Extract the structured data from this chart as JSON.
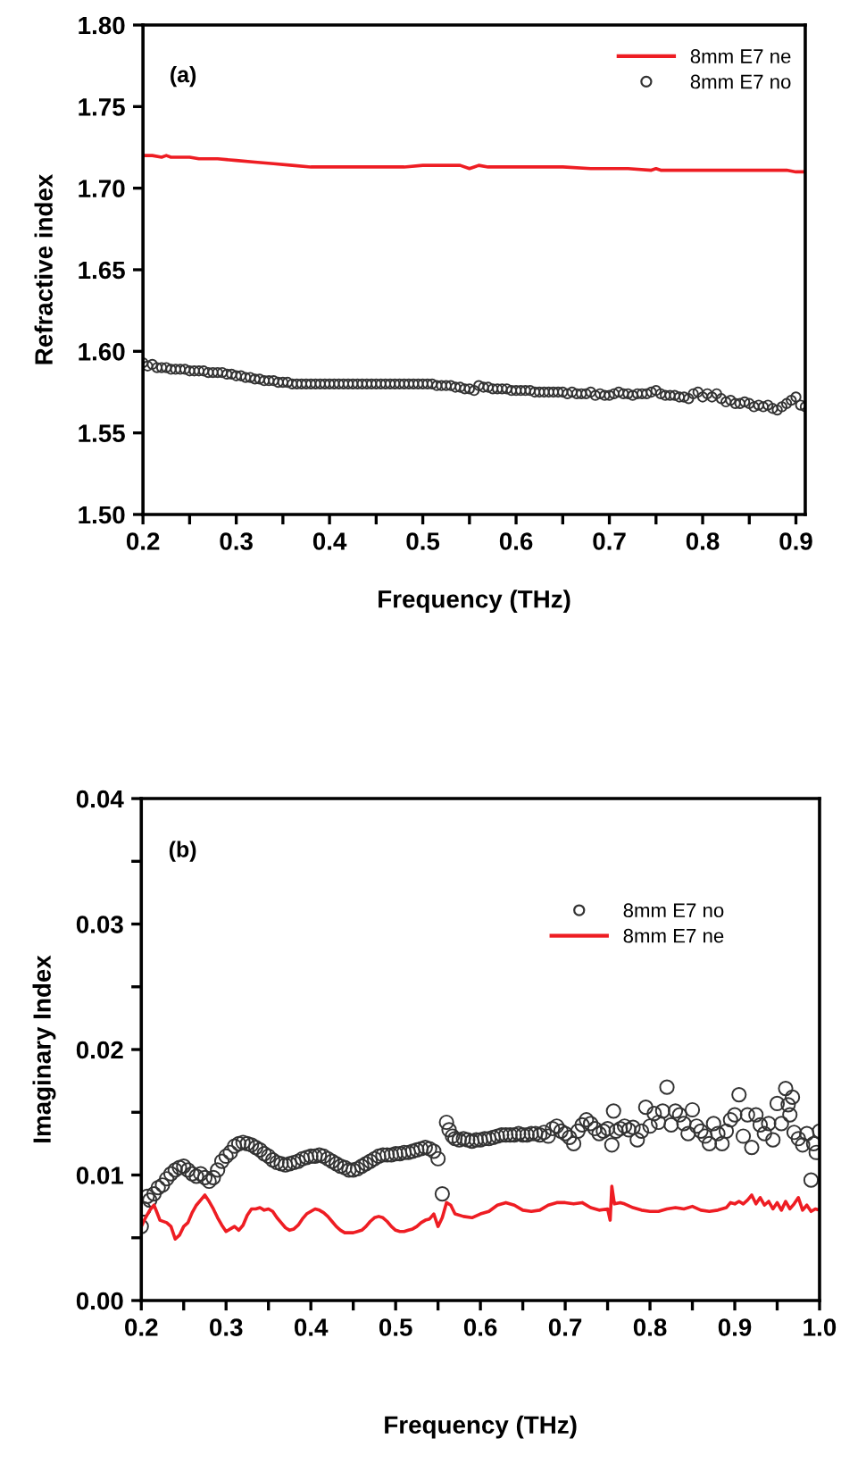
{
  "chart_data": [
    {
      "type": "line",
      "xlabel": "Frequency (THz)",
      "ylabel": "Refractive index",
      "annotations": [
        "(a)"
      ],
      "xlim": [
        0.2,
        0.91
      ],
      "ylim": [
        1.5,
        1.8
      ],
      "xticks": [
        0.2,
        {
          "value": 0.25,
          "label": null
        },
        0.3,
        {
          "value": 0.35,
          "label": null
        },
        0.4,
        {
          "value": 0.45,
          "label": null
        },
        0.5,
        {
          "value": 0.55,
          "label": null
        },
        0.6,
        {
          "value": 0.65,
          "label": null
        },
        0.7,
        {
          "value": 0.75,
          "label": null
        },
        0.8,
        {
          "value": 0.85,
          "label": null
        },
        0.9
      ],
      "yticks": [
        {
          "value": 1.5,
          "label": "1.50"
        },
        1.55,
        {
          "value": 1.6,
          "label": "1.60"
        },
        1.65,
        {
          "value": 1.7,
          "label": "1.70"
        },
        1.75,
        {
          "value": 1.8,
          "label": "1.80"
        }
      ],
      "legend": "top right",
      "series": [
        {
          "name": "8mm E7 ne",
          "color": "#ee1d23",
          "x": [
            0.2,
            0.21,
            0.22,
            0.225,
            0.23,
            0.24,
            0.25,
            0.26,
            0.27,
            0.28,
            0.3,
            0.32,
            0.34,
            0.36,
            0.38,
            0.4,
            0.42,
            0.45,
            0.48,
            0.5,
            0.52,
            0.54,
            0.55,
            0.555,
            0.56,
            0.57,
            0.6,
            0.62,
            0.65,
            0.68,
            0.7,
            0.72,
            0.745,
            0.75,
            0.755,
            0.77,
            0.8,
            0.82,
            0.85,
            0.87,
            0.89,
            0.9,
            0.91
          ],
          "values": [
            1.72,
            1.72,
            1.719,
            1.72,
            1.719,
            1.719,
            1.719,
            1.718,
            1.718,
            1.718,
            1.717,
            1.716,
            1.715,
            1.714,
            1.713,
            1.713,
            1.713,
            1.713,
            1.713,
            1.714,
            1.714,
            1.714,
            1.712,
            1.713,
            1.714,
            1.713,
            1.713,
            1.713,
            1.713,
            1.712,
            1.712,
            1.712,
            1.711,
            1.712,
            1.711,
            1.711,
            1.711,
            1.711,
            1.711,
            1.711,
            1.711,
            1.71,
            1.71
          ]
        },
        {
          "name": "8mm E7 no",
          "type": "scatter",
          "marker": "circle",
          "color": "#333333",
          "x": [
            0.2,
            0.205,
            0.21,
            0.215,
            0.22,
            0.225,
            0.23,
            0.235,
            0.24,
            0.245,
            0.25,
            0.255,
            0.26,
            0.265,
            0.27,
            0.275,
            0.28,
            0.285,
            0.29,
            0.295,
            0.3,
            0.305,
            0.31,
            0.315,
            0.32,
            0.325,
            0.33,
            0.335,
            0.34,
            0.345,
            0.35,
            0.355,
            0.36,
            0.365,
            0.37,
            0.375,
            0.38,
            0.385,
            0.39,
            0.395,
            0.4,
            0.405,
            0.41,
            0.415,
            0.42,
            0.425,
            0.43,
            0.435,
            0.44,
            0.445,
            0.45,
            0.455,
            0.46,
            0.465,
            0.47,
            0.475,
            0.48,
            0.485,
            0.49,
            0.495,
            0.5,
            0.505,
            0.51,
            0.515,
            0.52,
            0.525,
            0.53,
            0.535,
            0.54,
            0.545,
            0.55,
            0.555,
            0.56,
            0.565,
            0.57,
            0.575,
            0.58,
            0.585,
            0.59,
            0.595,
            0.6,
            0.605,
            0.61,
            0.615,
            0.62,
            0.625,
            0.63,
            0.635,
            0.64,
            0.645,
            0.65,
            0.655,
            0.66,
            0.665,
            0.67,
            0.675,
            0.68,
            0.685,
            0.69,
            0.695,
            0.7,
            0.705,
            0.71,
            0.715,
            0.72,
            0.725,
            0.73,
            0.735,
            0.74,
            0.745,
            0.75,
            0.755,
            0.76,
            0.765,
            0.77,
            0.775,
            0.78,
            0.785,
            0.79,
            0.795,
            0.8,
            0.805,
            0.81,
            0.815,
            0.82,
            0.825,
            0.83,
            0.835,
            0.84,
            0.845,
            0.85,
            0.855,
            0.86,
            0.865,
            0.87,
            0.875,
            0.88,
            0.885,
            0.89,
            0.895,
            0.9,
            0.905,
            0.91
          ],
          "values": [
            1.593,
            1.591,
            1.592,
            1.59,
            1.59,
            1.59,
            1.589,
            1.589,
            1.589,
            1.589,
            1.588,
            1.588,
            1.588,
            1.588,
            1.587,
            1.587,
            1.587,
            1.587,
            1.586,
            1.586,
            1.585,
            1.585,
            1.584,
            1.584,
            1.583,
            1.583,
            1.582,
            1.582,
            1.582,
            1.581,
            1.581,
            1.581,
            1.58,
            1.58,
            1.58,
            1.58,
            1.58,
            1.58,
            1.58,
            1.58,
            1.58,
            1.58,
            1.58,
            1.58,
            1.58,
            1.58,
            1.58,
            1.58,
            1.58,
            1.58,
            1.58,
            1.58,
            1.58,
            1.58,
            1.58,
            1.58,
            1.58,
            1.58,
            1.58,
            1.58,
            1.58,
            1.58,
            1.58,
            1.579,
            1.579,
            1.579,
            1.579,
            1.578,
            1.578,
            1.577,
            1.577,
            1.576,
            1.579,
            1.578,
            1.578,
            1.577,
            1.577,
            1.577,
            1.577,
            1.576,
            1.576,
            1.576,
            1.576,
            1.576,
            1.575,
            1.575,
            1.575,
            1.575,
            1.575,
            1.575,
            1.575,
            1.574,
            1.575,
            1.574,
            1.574,
            1.574,
            1.575,
            1.573,
            1.574,
            1.573,
            1.573,
            1.574,
            1.575,
            1.574,
            1.574,
            1.573,
            1.574,
            1.574,
            1.574,
            1.575,
            1.576,
            1.574,
            1.573,
            1.573,
            1.573,
            1.572,
            1.572,
            1.571,
            1.574,
            1.575,
            1.572,
            1.574,
            1.572,
            1.574,
            1.571,
            1.569,
            1.57,
            1.568,
            1.568,
            1.569,
            1.568,
            1.566,
            1.567,
            1.566,
            1.567,
            1.565,
            1.564,
            1.566,
            1.568,
            1.57,
            1.572,
            1.567,
            1.566
          ]
        }
      ]
    },
    {
      "type": "line",
      "xlabel": "Frequency (THz)",
      "ylabel": "Imaginary Index",
      "annotations": [
        "(b)"
      ],
      "xlim": [
        0.2,
        1.0
      ],
      "ylim": [
        0,
        0.04
      ],
      "xticks": [
        0.2,
        {
          "value": 0.25,
          "label": null
        },
        0.3,
        {
          "value": 0.35,
          "label": null
        },
        0.4,
        {
          "value": 0.45,
          "label": null
        },
        0.5,
        {
          "value": 0.55,
          "label": null
        },
        0.6,
        {
          "value": 0.65,
          "label": null
        },
        0.7,
        {
          "value": 0.75,
          "label": null
        },
        0.8,
        {
          "value": 0.85,
          "label": null
        },
        0.9,
        {
          "value": 0.95,
          "label": null
        },
        {
          "value": 1.0,
          "label": "1.0"
        }
      ],
      "yticks": [
        {
          "value": 0,
          "label": "0.00"
        },
        {
          "value": 0.005,
          "label": null
        },
        0.01,
        {
          "value": 0.015,
          "label": null
        },
        0.02,
        {
          "value": 0.025,
          "label": null
        },
        0.03,
        {
          "value": 0.035,
          "label": null
        },
        0.04
      ],
      "legend": "top right",
      "series": [
        {
          "name": "8mm E7 no",
          "type": "scatter",
          "marker": "circle",
          "color": "#333333",
          "x": [
            0.2,
            0.203,
            0.207,
            0.21,
            0.215,
            0.22,
            0.225,
            0.23,
            0.235,
            0.24,
            0.245,
            0.25,
            0.255,
            0.26,
            0.265,
            0.27,
            0.275,
            0.28,
            0.285,
            0.29,
            0.295,
            0.3,
            0.305,
            0.31,
            0.315,
            0.32,
            0.325,
            0.33,
            0.335,
            0.34,
            0.345,
            0.35,
            0.355,
            0.36,
            0.365,
            0.37,
            0.375,
            0.38,
            0.385,
            0.39,
            0.395,
            0.4,
            0.405,
            0.41,
            0.415,
            0.42,
            0.425,
            0.43,
            0.435,
            0.44,
            0.445,
            0.45,
            0.455,
            0.46,
            0.465,
            0.47,
            0.475,
            0.48,
            0.485,
            0.49,
            0.495,
            0.5,
            0.505,
            0.51,
            0.515,
            0.52,
            0.525,
            0.53,
            0.535,
            0.54,
            0.545,
            0.55,
            0.555,
            0.56,
            0.563,
            0.567,
            0.57,
            0.575,
            0.58,
            0.585,
            0.59,
            0.595,
            0.6,
            0.605,
            0.61,
            0.615,
            0.62,
            0.625,
            0.63,
            0.635,
            0.64,
            0.645,
            0.65,
            0.655,
            0.66,
            0.665,
            0.67,
            0.675,
            0.68,
            0.685,
            0.69,
            0.695,
            0.7,
            0.705,
            0.71,
            0.715,
            0.72,
            0.725,
            0.73,
            0.735,
            0.74,
            0.745,
            0.75,
            0.755,
            0.757,
            0.76,
            0.765,
            0.77,
            0.775,
            0.78,
            0.785,
            0.79,
            0.795,
            0.8,
            0.805,
            0.81,
            0.815,
            0.82,
            0.825,
            0.83,
            0.835,
            0.84,
            0.845,
            0.85,
            0.855,
            0.86,
            0.865,
            0.87,
            0.875,
            0.88,
            0.885,
            0.89,
            0.895,
            0.9,
            0.905,
            0.91,
            0.915,
            0.92,
            0.925,
            0.93,
            0.935,
            0.94,
            0.945,
            0.95,
            0.955,
            0.96,
            0.963,
            0.965,
            0.968,
            0.97,
            0.975,
            0.98,
            0.985,
            0.99,
            0.993,
            0.996,
            1.0
          ],
          "values": [
            0.0059,
            0.0073,
            0.0083,
            0.008,
            0.0085,
            0.009,
            0.0092,
            0.0097,
            0.0101,
            0.0104,
            0.0106,
            0.0107,
            0.0104,
            0.0101,
            0.0099,
            0.0101,
            0.0098,
            0.0095,
            0.0098,
            0.0104,
            0.0111,
            0.0115,
            0.0118,
            0.0123,
            0.0125,
            0.0126,
            0.0125,
            0.0124,
            0.0122,
            0.012,
            0.0117,
            0.0115,
            0.0112,
            0.011,
            0.0109,
            0.0108,
            0.0109,
            0.011,
            0.0111,
            0.0113,
            0.0114,
            0.0115,
            0.0115,
            0.0116,
            0.0115,
            0.0113,
            0.0111,
            0.0109,
            0.0107,
            0.0106,
            0.0104,
            0.0104,
            0.0105,
            0.0107,
            0.0109,
            0.0111,
            0.0113,
            0.0115,
            0.0116,
            0.0116,
            0.0116,
            0.0117,
            0.0117,
            0.0118,
            0.0118,
            0.0119,
            0.012,
            0.0121,
            0.0122,
            0.0121,
            0.0119,
            0.0113,
            0.0085,
            0.0142,
            0.0136,
            0.0131,
            0.0129,
            0.0128,
            0.0129,
            0.0128,
            0.0127,
            0.0128,
            0.0128,
            0.0129,
            0.0129,
            0.013,
            0.0131,
            0.0132,
            0.0132,
            0.0132,
            0.0132,
            0.0133,
            0.0132,
            0.0132,
            0.0133,
            0.0133,
            0.0132,
            0.0134,
            0.0131,
            0.0137,
            0.0139,
            0.0135,
            0.0133,
            0.013,
            0.0125,
            0.0135,
            0.014,
            0.0144,
            0.0141,
            0.0137,
            0.0133,
            0.0135,
            0.0137,
            0.0124,
            0.0151,
            0.0135,
            0.0137,
            0.0139,
            0.0136,
            0.0138,
            0.0128,
            0.0135,
            0.0154,
            0.0139,
            0.0149,
            0.0142,
            0.0151,
            0.017,
            0.014,
            0.0151,
            0.0148,
            0.0141,
            0.0133,
            0.0152,
            0.0139,
            0.0135,
            0.0131,
            0.0125,
            0.0141,
            0.0133,
            0.0125,
            0.0135,
            0.0144,
            0.0148,
            0.0164,
            0.0131,
            0.0148,
            0.0122,
            0.0148,
            0.014,
            0.0133,
            0.0141,
            0.0128,
            0.0157,
            0.0141,
            0.0169,
            0.0156,
            0.0148,
            0.0162,
            0.0134,
            0.0129,
            0.0124,
            0.0133,
            0.0096,
            0.0125,
            0.0118,
            0.0135
          ]
        },
        {
          "name": "8mm E7 ne",
          "color": "#ee1d23",
          "x": [
            0.2,
            0.205,
            0.21,
            0.215,
            0.218,
            0.222,
            0.23,
            0.235,
            0.24,
            0.245,
            0.25,
            0.255,
            0.26,
            0.265,
            0.27,
            0.275,
            0.28,
            0.285,
            0.29,
            0.295,
            0.3,
            0.305,
            0.31,
            0.315,
            0.32,
            0.325,
            0.33,
            0.335,
            0.34,
            0.345,
            0.35,
            0.355,
            0.36,
            0.365,
            0.37,
            0.375,
            0.38,
            0.385,
            0.39,
            0.395,
            0.4,
            0.405,
            0.41,
            0.415,
            0.42,
            0.425,
            0.43,
            0.435,
            0.44,
            0.445,
            0.45,
            0.455,
            0.46,
            0.465,
            0.47,
            0.475,
            0.48,
            0.485,
            0.49,
            0.495,
            0.5,
            0.505,
            0.51,
            0.515,
            0.52,
            0.525,
            0.53,
            0.535,
            0.54,
            0.545,
            0.55,
            0.555,
            0.56,
            0.565,
            0.57,
            0.58,
            0.59,
            0.6,
            0.61,
            0.62,
            0.63,
            0.64,
            0.65,
            0.66,
            0.67,
            0.68,
            0.69,
            0.7,
            0.71,
            0.72,
            0.73,
            0.74,
            0.75,
            0.753,
            0.755,
            0.758,
            0.765,
            0.77,
            0.78,
            0.79,
            0.8,
            0.81,
            0.82,
            0.83,
            0.84,
            0.85,
            0.86,
            0.87,
            0.88,
            0.89,
            0.895,
            0.9,
            0.905,
            0.91,
            0.915,
            0.92,
            0.925,
            0.93,
            0.935,
            0.94,
            0.945,
            0.95,
            0.955,
            0.96,
            0.965,
            0.97,
            0.975,
            0.98,
            0.985,
            0.99,
            0.995,
            1.0
          ],
          "values": [
            0.0059,
            0.0066,
            0.0072,
            0.0076,
            0.0071,
            0.0064,
            0.0062,
            0.0059,
            0.0049,
            0.0052,
            0.0059,
            0.0062,
            0.007,
            0.0076,
            0.008,
            0.0084,
            0.0079,
            0.0073,
            0.0066,
            0.006,
            0.0055,
            0.0057,
            0.0059,
            0.0056,
            0.006,
            0.0068,
            0.0073,
            0.0073,
            0.0074,
            0.0072,
            0.0073,
            0.0071,
            0.0066,
            0.0062,
            0.0058,
            0.0056,
            0.0057,
            0.006,
            0.0065,
            0.0069,
            0.0071,
            0.0073,
            0.0072,
            0.007,
            0.0067,
            0.0063,
            0.0059,
            0.0056,
            0.0054,
            0.0054,
            0.0054,
            0.0055,
            0.0056,
            0.0059,
            0.0063,
            0.0066,
            0.0067,
            0.0066,
            0.0063,
            0.0059,
            0.0056,
            0.0055,
            0.0055,
            0.0056,
            0.0057,
            0.0059,
            0.0062,
            0.0064,
            0.0065,
            0.0069,
            0.0059,
            0.0066,
            0.0078,
            0.0076,
            0.0069,
            0.0067,
            0.0066,
            0.0069,
            0.0071,
            0.0076,
            0.0078,
            0.0076,
            0.0072,
            0.0071,
            0.0072,
            0.0076,
            0.0078,
            0.0078,
            0.0077,
            0.0078,
            0.0074,
            0.0072,
            0.0073,
            0.0064,
            0.0091,
            0.0077,
            0.0078,
            0.0077,
            0.0074,
            0.0072,
            0.0071,
            0.0071,
            0.0073,
            0.0074,
            0.0073,
            0.0075,
            0.0072,
            0.0071,
            0.0072,
            0.0074,
            0.0078,
            0.0077,
            0.0079,
            0.0077,
            0.008,
            0.0084,
            0.0077,
            0.0082,
            0.0076,
            0.0079,
            0.0073,
            0.0078,
            0.0072,
            0.0079,
            0.0073,
            0.0077,
            0.0082,
            0.0072,
            0.0076,
            0.0071,
            0.0073,
            0.0072
          ]
        }
      ]
    }
  ]
}
